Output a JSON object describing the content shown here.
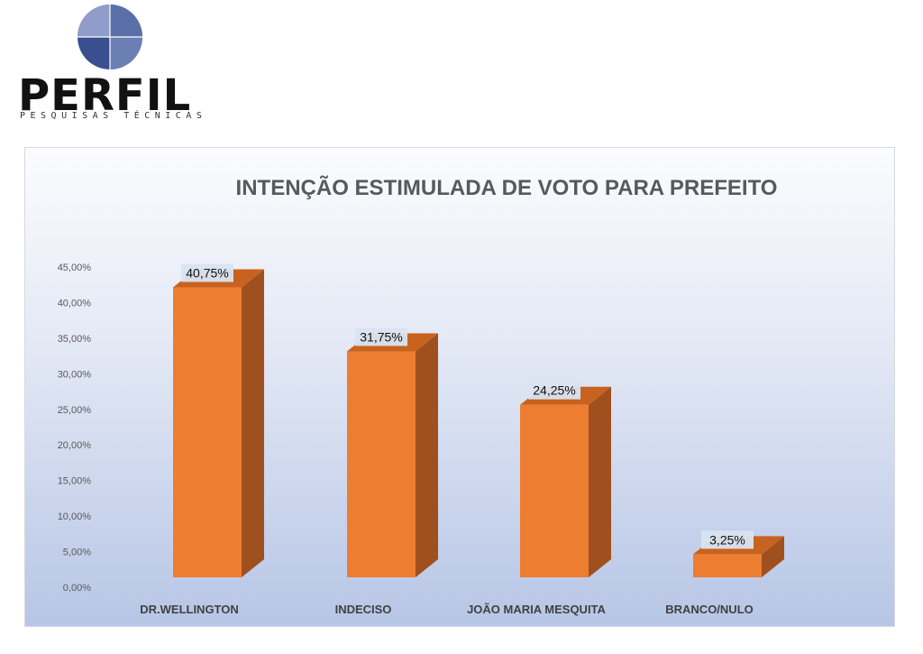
{
  "logo": {
    "wordmark": "PERFIL",
    "tagline": "PESQUISAS TÉCNICAS"
  },
  "colors": {
    "bar_front": "#ED7D31",
    "bar_side": "#A0501E",
    "bar_top": "#C8621F",
    "label_bg": "#D9E4F2"
  },
  "chart_data": {
    "type": "bar",
    "title": "INTENÇÃO ESTIMULADA DE VOTO PARA PREFEITO",
    "categories": [
      "DR.WELLINGTON",
      "INDECISO",
      "JOÃO MARIA MESQUITA",
      "BRANCO/NULO"
    ],
    "values": [
      40.75,
      31.75,
      24.25,
      3.25
    ],
    "data_labels": [
      "40,75%",
      "31,75%",
      "24,25%",
      "3,25%"
    ],
    "y_ticks": [
      "0,00%",
      "5,00%",
      "10,00%",
      "15,00%",
      "20,00%",
      "25,00%",
      "30,00%",
      "35,00%",
      "40,00%",
      "45,00%"
    ],
    "ylim": [
      0,
      45
    ],
    "xlabel": "",
    "ylabel": "",
    "grid": false,
    "legend": "none",
    "style": "3d"
  }
}
